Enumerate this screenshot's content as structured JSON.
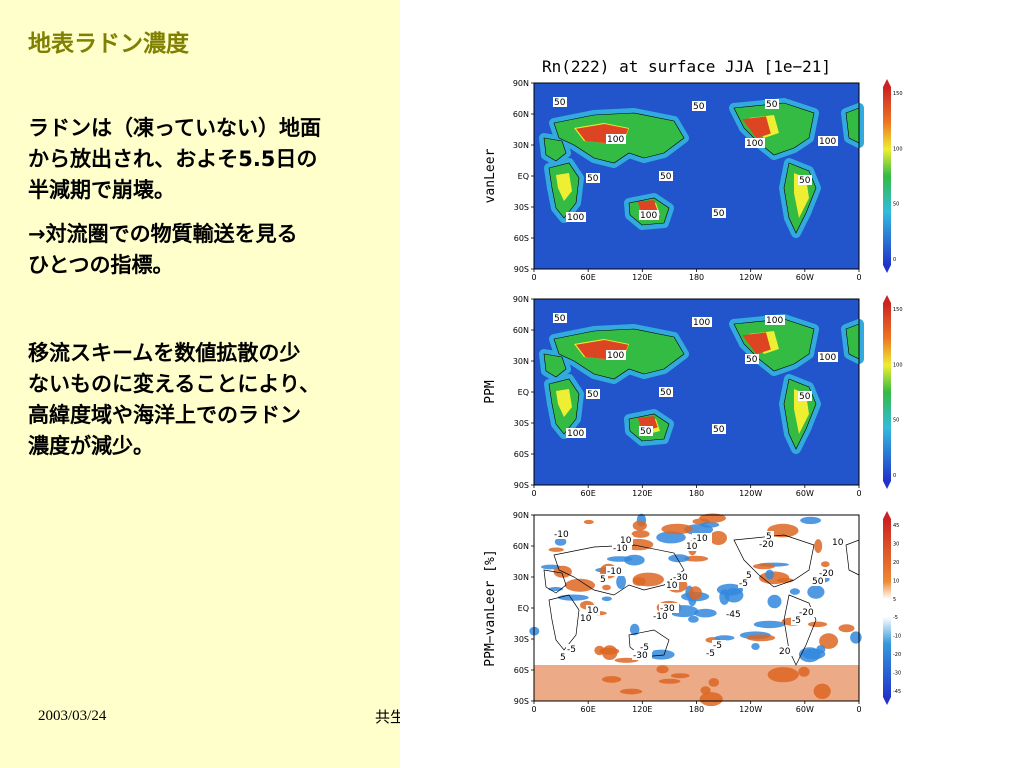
{
  "slide": {
    "title": "地表ラドン濃度",
    "paragraph1": [
      "ラドンは（凍っていない）地面",
      "から放出され、およそ5.5日の",
      "半減期で崩壊。"
    ],
    "paragraph2": [
      "→対流圏での物質輸送を見る",
      "ひとつの指標。"
    ],
    "paragraph3": [
      "移流スキームを数値拡散の少",
      "ないものに変えることにより、",
      "高緯度域や海洋上でのラドン",
      "濃度が減少。"
    ],
    "footer_date": "2003/03/24",
    "footer_text": "共生"
  },
  "figure": {
    "title": "Rn(222) at surface JJA [1e−21]",
    "panels": [
      {
        "label": "vanLeer",
        "colorbar_ticks": [
          "150",
          "100",
          "50",
          "0"
        ],
        "contour_labels": [
          "50",
          "100",
          "50",
          "50",
          "50",
          "100",
          "50",
          "100",
          "50",
          "100",
          "50",
          "100"
        ]
      },
      {
        "label": "PPM",
        "colorbar_ticks": [
          "150",
          "100",
          "50",
          "0"
        ],
        "contour_labels": [
          "50",
          "100",
          "50",
          "50",
          "100",
          "100",
          "50",
          "50",
          "100",
          "50",
          "50",
          "100"
        ]
      },
      {
        "label": "PPM−vanLeer [%]",
        "colorbar_ticks": [
          "45",
          "30",
          "20",
          "10",
          "5",
          "-5",
          "-10",
          "-20",
          "-30",
          "-45"
        ],
        "contour_labels": [
          "-10",
          "-10",
          "-30",
          "-5",
          "5",
          "-20",
          "10",
          "-5",
          "-10",
          "5",
          "-20",
          "-5",
          "10",
          "-30",
          "-45",
          "20",
          "10",
          "5",
          "-10",
          "-5",
          "-20",
          "50",
          "10",
          "-30",
          "10",
          "-5",
          "-5",
          "5",
          "-10",
          "10"
        ]
      }
    ],
    "y_ticks": [
      "90N",
      "60N",
      "30N",
      "EQ",
      "30S",
      "60S",
      "90S"
    ],
    "x_ticks": [
      "0",
      "60E",
      "120E",
      "180",
      "120W",
      "60W",
      "0"
    ],
    "colors": {
      "ocean": "#2255cc",
      "land_low": "#33bb44",
      "land_high": "#dd4422",
      "mid": "#eeee33",
      "diff_pos": "#dd6622",
      "diff_neg": "#3388dd"
    }
  }
}
